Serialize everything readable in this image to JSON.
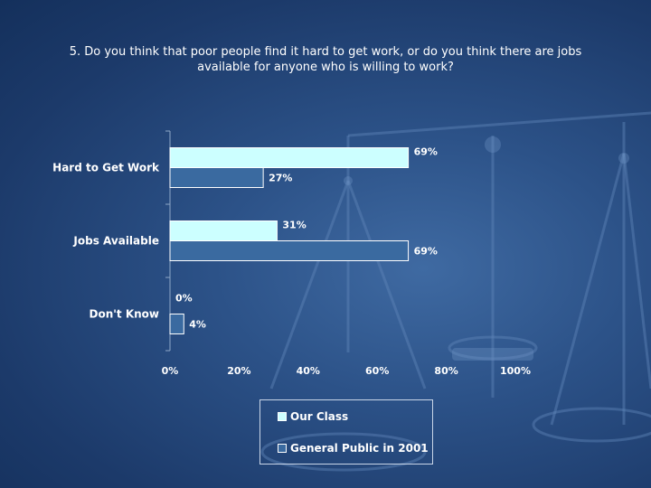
{
  "colors": {
    "series_1": "#ccffff",
    "series_2": "#3a6aa0",
    "bar_border": "#ffffff"
  },
  "chart_data": {
    "type": "bar",
    "orientation": "horizontal",
    "title_lines": [
      "5. Do you think that poor people find it hard to get work, or do you think there are jobs",
      "available for anyone who is willing to work?"
    ],
    "categories": [
      "Hard to Get Work",
      "Jobs Available",
      "Don't Know"
    ],
    "series": [
      {
        "name": "Our Class",
        "values": [
          69,
          31,
          0
        ],
        "labels": [
          "69%",
          "31%",
          "0%"
        ]
      },
      {
        "name": "General Public in 2001",
        "values": [
          27,
          69,
          4
        ],
        "labels": [
          "27%",
          "69%",
          "4%"
        ]
      }
    ],
    "xlim": [
      0,
      100
    ],
    "xticks": [
      0,
      20,
      40,
      60,
      80,
      100
    ],
    "xtick_labels": [
      "0%",
      "20%",
      "40%",
      "60%",
      "80%",
      "100%"
    ],
    "grid": false,
    "legend_position": "bottom"
  }
}
